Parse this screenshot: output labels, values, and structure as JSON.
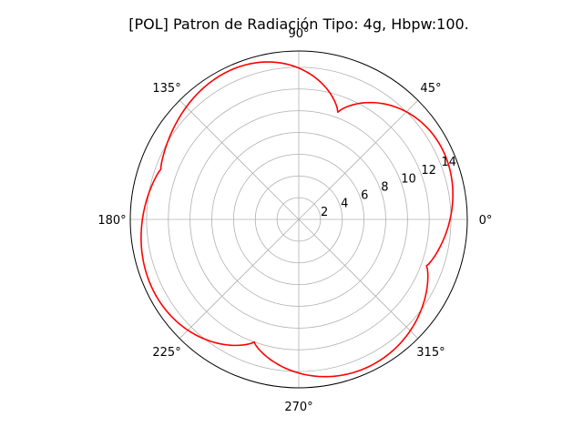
{
  "chart_data": {
    "type": "line",
    "projection": "polar",
    "title": "[POL] Patron de Radiación Tipo: 4g, Hbpw:100.",
    "theta_unit": "degrees",
    "theta_ticks": [
      0,
      45,
      90,
      135,
      180,
      225,
      270,
      315
    ],
    "theta_tick_labels": [
      "0°",
      "45°",
      "90°",
      "135°",
      "180°",
      "225°",
      "270°",
      "315°"
    ],
    "r_ticks": [
      2,
      4,
      6,
      8,
      10,
      12,
      14
    ],
    "r_tick_labels": [
      "2",
      "4",
      "6",
      "8",
      "10",
      "12",
      "14"
    ],
    "rlim": [
      0,
      15.5
    ],
    "r_label_angle_deg": 22.5,
    "grid": true,
    "legend": "none",
    "series": [
      {
        "color": "#ff0000",
        "lobes": [
          {
            "theta_start": -20,
            "theta_end": 70,
            "r_max": 14.7
          },
          {
            "theta_start": 70,
            "theta_end": 160,
            "r_max": 15.1
          },
          {
            "theta_start": 160,
            "theta_end": 250,
            "r_max": 14.9
          },
          {
            "theta_start": 250,
            "theta_end": 340,
            "r_max": 15.0
          }
        ],
        "null_r": [
          {
            "theta": -20,
            "r": 12.5
          },
          {
            "theta": 70,
            "r": 10.5
          },
          {
            "theta": 160,
            "r": 13.5
          },
          {
            "theta": 250,
            "r": 12.0
          }
        ]
      }
    ]
  }
}
